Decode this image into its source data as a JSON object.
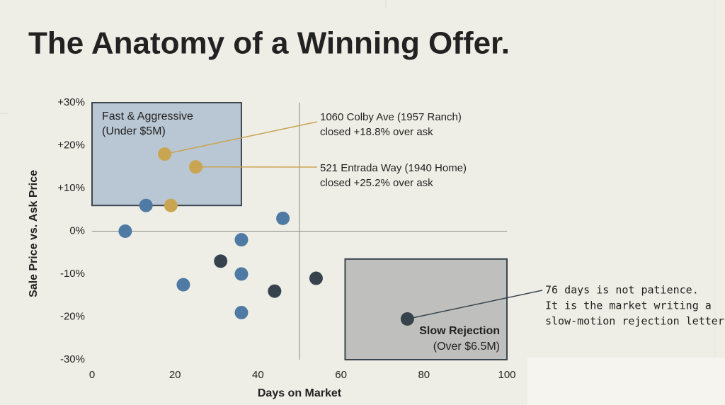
{
  "chart_data": {
    "type": "scatter",
    "title": "The Anatomy of a Winning Offer.",
    "xlabel": "Days on Market",
    "ylabel": "Sale Price vs. Ask Price",
    "xlim": [
      0,
      100
    ],
    "ylim": [
      -30,
      30
    ],
    "xticks": [
      0,
      20,
      40,
      60,
      80,
      100
    ],
    "yticks": [
      {
        "value": 30,
        "label": "+30%"
      },
      {
        "value": 20,
        "label": "+20%"
      },
      {
        "value": 10,
        "label": "+10%"
      },
      {
        "value": 0,
        "label": "0%"
      },
      {
        "value": -10,
        "label": "-10%"
      },
      {
        "value": -20,
        "label": "-20%"
      },
      {
        "value": -30,
        "label": "-30%"
      }
    ],
    "reference_lines": {
      "x": 50,
      "y": 0
    },
    "regions": [
      {
        "lines": [
          "Fast & Aggressive",
          "(Under $5M)"
        ],
        "x": [
          0,
          36
        ],
        "y": [
          6,
          30
        ],
        "color": "#b9c6d3"
      },
      {
        "lines": [
          "Slow Rejection",
          "(Over $6.5M)"
        ],
        "x": [
          61,
          100
        ],
        "y": [
          -6.5,
          -30
        ],
        "color": "#bfc0bd"
      }
    ],
    "series": [
      {
        "color": "#4f7aa3",
        "x": [
          8,
          13,
          46,
          36,
          36,
          22,
          36
        ],
        "values": [
          0,
          6,
          3,
          -2,
          -10,
          -12.5,
          -19
        ]
      },
      {
        "color": "#c9a552",
        "x": [
          17.5,
          25,
          19
        ],
        "values": [
          18,
          15,
          6
        ]
      },
      {
        "color": "#36434d",
        "x": [
          31,
          44,
          54,
          76
        ],
        "values": [
          -7,
          -14,
          -11,
          -20.5
        ]
      }
    ],
    "annotations": [
      {
        "lines": [
          "1060 Colby Ave (1957 Ranch)",
          "closed +18.8% over ask"
        ]
      },
      {
        "lines": [
          "521 Entrada Way (1940 Home)",
          "closed +25.2% over ask"
        ]
      },
      {
        "lines": [
          "76 days is not patience.",
          "It is the market writing a",
          "slow-motion rejection letter."
        ]
      }
    ]
  }
}
